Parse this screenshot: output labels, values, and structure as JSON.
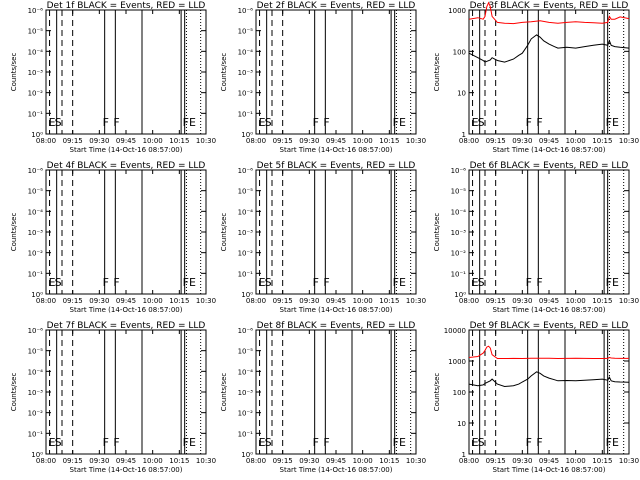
{
  "chart_data": [
    {
      "type": "line",
      "title": "Det 1f BLACK = Events, RED = LLD",
      "xlabel": "Start Time (14-Oct-16 08:57:00)",
      "ylabel": "Counts/sec",
      "x_ticks": [
        "08:00",
        "09:15",
        "09:30",
        "09:45",
        "10:00",
        "10:15",
        "10:30"
      ],
      "y_ticks": [
        "10⁰",
        "10⁻¹",
        "10⁻²",
        "10⁻³",
        "10⁻⁴",
        "10⁻⁵",
        "10⁻⁶"
      ],
      "markers": [
        "E",
        "S",
        "F",
        "F",
        "FE"
      ],
      "series": []
    },
    {
      "type": "line",
      "title": "Det 2f BLACK = Events, RED = LLD",
      "xlabel": "Start Time (14-Oct-16 08:57:00)",
      "ylabel": "Counts/sec",
      "x_ticks": [
        "08:00",
        "09:15",
        "09:30",
        "09:45",
        "10:00",
        "10:15",
        "10:30"
      ],
      "y_ticks": [
        "10⁰",
        "10⁻¹",
        "10⁻²",
        "10⁻³",
        "10⁻⁴",
        "10⁻⁵",
        "10⁻⁶"
      ],
      "markers": [
        "E",
        "S",
        "F",
        "F",
        "FE"
      ],
      "series": []
    },
    {
      "type": "line",
      "title": "Det 3f BLACK = Events, RED = LLD",
      "xlabel": "Start Time (14-Oct-16 08:57:00)",
      "ylabel": "Counts/sec",
      "x_ticks": [
        "08:00",
        "09:15",
        "09:30",
        "09:45",
        "10:00",
        "10:15",
        "10:30"
      ],
      "y_ticks": [
        "1",
        "10",
        "100",
        "1000"
      ],
      "markers": [
        "E",
        "S",
        "F",
        "F",
        "FE"
      ],
      "series": [
        {
          "color": "#000000",
          "x": [
            0,
            5,
            8,
            9,
            12,
            13,
            16,
            20,
            25,
            28,
            30,
            33,
            35,
            38,
            40,
            42,
            45,
            48,
            50,
            55,
            60,
            65,
            70,
            75,
            78,
            79,
            80,
            82,
            85,
            90
          ],
          "y": [
            90,
            70,
            60,
            55,
            62,
            70,
            60,
            55,
            65,
            80,
            90,
            140,
            200,
            250,
            220,
            180,
            150,
            130,
            120,
            125,
            120,
            130,
            140,
            150,
            140,
            180,
            140,
            130,
            125,
            120
          ]
        },
        {
          "color": "#ff0000",
          "x": [
            0,
            5,
            8,
            9,
            10,
            11,
            12,
            13,
            16,
            20,
            25,
            30,
            35,
            40,
            45,
            50,
            55,
            60,
            65,
            70,
            75,
            78,
            79,
            80,
            82,
            85,
            90
          ],
          "y": [
            600,
            650,
            600,
            700,
            1200,
            1500,
            1200,
            700,
            500,
            480,
            470,
            500,
            520,
            550,
            500,
            480,
            500,
            520,
            500,
            490,
            480,
            500,
            700,
            600,
            600,
            680,
            620
          ]
        }
      ]
    },
    {
      "type": "line",
      "title": "Det 4f BLACK = Events, RED = LLD",
      "xlabel": "Start Time (14-Oct-16 08:57:00)",
      "ylabel": "Counts/sec",
      "x_ticks": [
        "08:00",
        "09:15",
        "09:30",
        "09:45",
        "10:00",
        "10:15",
        "10:30"
      ],
      "y_ticks": [
        "10⁰",
        "10⁻¹",
        "10⁻²",
        "10⁻³",
        "10⁻⁴",
        "10⁻⁵",
        "10⁻⁶"
      ],
      "markers": [
        "E",
        "S",
        "F",
        "F",
        "FE"
      ],
      "series": []
    },
    {
      "type": "line",
      "title": "Det 5f BLACK = Events, RED = LLD",
      "xlabel": "Start Time (14-Oct-16 08:57:00)",
      "ylabel": "Counts/sec",
      "x_ticks": [
        "08:00",
        "09:15",
        "09:30",
        "09:45",
        "10:00",
        "10:15",
        "10:30"
      ],
      "y_ticks": [
        "10⁰",
        "10⁻¹",
        "10⁻²",
        "10⁻³",
        "10⁻⁴",
        "10⁻⁵",
        "10⁻⁶"
      ],
      "markers": [
        "E",
        "S",
        "F",
        "F",
        "FE"
      ],
      "series": []
    },
    {
      "type": "line",
      "title": "Det 6f BLACK = Events, RED = LLD",
      "xlabel": "Start Time (14-Oct-16 08:57:00)",
      "ylabel": "Counts/sec",
      "x_ticks": [
        "08:00",
        "09:15",
        "09:30",
        "09:45",
        "10:00",
        "10:15",
        "10:30"
      ],
      "y_ticks": [
        "10⁰",
        "10⁻¹",
        "10⁻²",
        "10⁻³",
        "10⁻⁴",
        "10⁻⁵",
        "10⁻⁶"
      ],
      "markers": [
        "E",
        "S",
        "F",
        "F",
        "FE"
      ],
      "series": []
    },
    {
      "type": "line",
      "title": "Det 7f BLACK = Events, RED = LLD",
      "xlabel": "Start Time (14-Oct-16 08:57:00)",
      "ylabel": "Counts/sec",
      "x_ticks": [
        "08:00",
        "09:15",
        "09:30",
        "09:45",
        "10:00",
        "10:15",
        "10:30"
      ],
      "y_ticks": [
        "10⁰",
        "10⁻¹",
        "10⁻²",
        "10⁻³",
        "10⁻⁴",
        "10⁻⁵",
        "10⁻⁶"
      ],
      "markers": [
        "E",
        "S",
        "F",
        "F",
        "FE"
      ],
      "series": []
    },
    {
      "type": "line",
      "title": "Det 8f BLACK = Events, RED = LLD",
      "xlabel": "Start Time (14-Oct-16 08:57:00)",
      "ylabel": "Counts/sec",
      "x_ticks": [
        "08:00",
        "09:15",
        "09:30",
        "09:45",
        "10:00",
        "10:15",
        "10:30"
      ],
      "y_ticks": [
        "10⁰",
        "10⁻¹",
        "10⁻²",
        "10⁻³",
        "10⁻⁴",
        "10⁻⁵",
        "10⁻⁶"
      ],
      "markers": [
        "E",
        "S",
        "F",
        "F",
        "FE"
      ],
      "series": []
    },
    {
      "type": "line",
      "title": "Det 9f BLACK = Events, RED = LLD",
      "xlabel": "Start Time (14-Oct-16 08:57:00)",
      "ylabel": "Counts/sec",
      "x_ticks": [
        "08:00",
        "09:15",
        "09:30",
        "09:45",
        "10:00",
        "10:15",
        "10:30"
      ],
      "y_ticks": [
        "1",
        "10",
        "100",
        "1000",
        "10000"
      ],
      "markers": [
        "E",
        "S",
        "F",
        "F",
        "FE"
      ],
      "series": [
        {
          "color": "#000000",
          "x": [
            0,
            5,
            8,
            9,
            12,
            13,
            16,
            20,
            25,
            28,
            30,
            33,
            35,
            38,
            40,
            42,
            45,
            48,
            50,
            55,
            60,
            65,
            70,
            75,
            78,
            79,
            80,
            82,
            85,
            90
          ],
          "y": [
            180,
            160,
            170,
            190,
            230,
            260,
            180,
            150,
            160,
            180,
            210,
            260,
            330,
            450,
            400,
            330,
            280,
            250,
            230,
            235,
            230,
            240,
            250,
            260,
            240,
            300,
            230,
            215,
            210,
            205
          ]
        },
        {
          "color": "#ff0000",
          "x": [
            0,
            5,
            8,
            9,
            10,
            11,
            12,
            13,
            16,
            20,
            25,
            30,
            35,
            40,
            45,
            50,
            55,
            60,
            65,
            70,
            75,
            78,
            79,
            80,
            82,
            85,
            90
          ],
          "y": [
            1300,
            1400,
            1800,
            2200,
            2800,
            3000,
            2600,
            1600,
            1200,
            1200,
            1210,
            1200,
            1220,
            1230,
            1220,
            1200,
            1210,
            1220,
            1210,
            1200,
            1200,
            1210,
            1300,
            1250,
            1220,
            1215,
            1210
          ]
        }
      ]
    }
  ]
}
